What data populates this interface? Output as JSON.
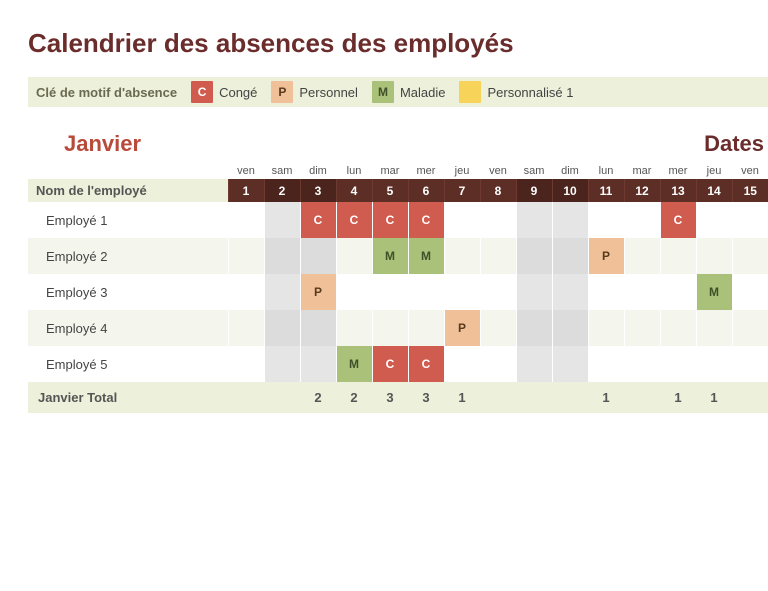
{
  "title": "Calendrier des absences des employés",
  "legend": {
    "label": "Clé de motif d'absence",
    "items": [
      {
        "code": "C",
        "class": "c",
        "text": "Congé"
      },
      {
        "code": "P",
        "class": "p",
        "text": "Personnel"
      },
      {
        "code": "M",
        "class": "m",
        "text": "Maladie"
      },
      {
        "code": "",
        "class": "cust",
        "text": "Personnalisé 1"
      }
    ]
  },
  "month": "Janvier",
  "dates_label": "Dates",
  "name_header": "Nom de l'employé",
  "days": [
    {
      "n": 1,
      "dow": "ven",
      "alt": false
    },
    {
      "n": 2,
      "dow": "sam",
      "alt": true
    },
    {
      "n": 3,
      "dow": "dim",
      "alt": true
    },
    {
      "n": 4,
      "dow": "lun",
      "alt": false
    },
    {
      "n": 5,
      "dow": "mar",
      "alt": false
    },
    {
      "n": 6,
      "dow": "mer",
      "alt": false
    },
    {
      "n": 7,
      "dow": "jeu",
      "alt": false
    },
    {
      "n": 8,
      "dow": "ven",
      "alt": false
    },
    {
      "n": 9,
      "dow": "sam",
      "alt": true
    },
    {
      "n": 10,
      "dow": "dim",
      "alt": true
    },
    {
      "n": 11,
      "dow": "lun",
      "alt": false
    },
    {
      "n": 12,
      "dow": "mar",
      "alt": false
    },
    {
      "n": 13,
      "dow": "mer",
      "alt": false
    },
    {
      "n": 14,
      "dow": "jeu",
      "alt": false
    },
    {
      "n": 15,
      "dow": "ven",
      "alt": false
    }
  ],
  "employees": [
    {
      "name": "Employé 1",
      "absences": {
        "3": "C",
        "4": "C",
        "5": "C",
        "6": "C",
        "13": "C"
      }
    },
    {
      "name": "Employé 2",
      "absences": {
        "5": "M",
        "6": "M",
        "11": "P"
      }
    },
    {
      "name": "Employé 3",
      "absences": {
        "3": "P",
        "14": "M"
      }
    },
    {
      "name": "Employé 4",
      "absences": {
        "7": "P"
      }
    },
    {
      "name": "Employé 5",
      "absences": {
        "4": "M",
        "5": "C",
        "6": "C"
      }
    }
  ],
  "total_label": "Janvier Total",
  "totals": {
    "3": 2,
    "4": 2,
    "5": 3,
    "6": 3,
    "7": 1,
    "11": 1,
    "13": 1,
    "14": 1
  },
  "colors": {
    "title": "#6b2c2c",
    "month": "#b94a3a",
    "header_bg": "#5c2e26",
    "legend_bg": "#edf0da",
    "c": "#d05b4f",
    "p": "#f0c099",
    "m": "#aac17a",
    "cust": "#f7d35a",
    "alt_cell": "#e5e5e5"
  }
}
